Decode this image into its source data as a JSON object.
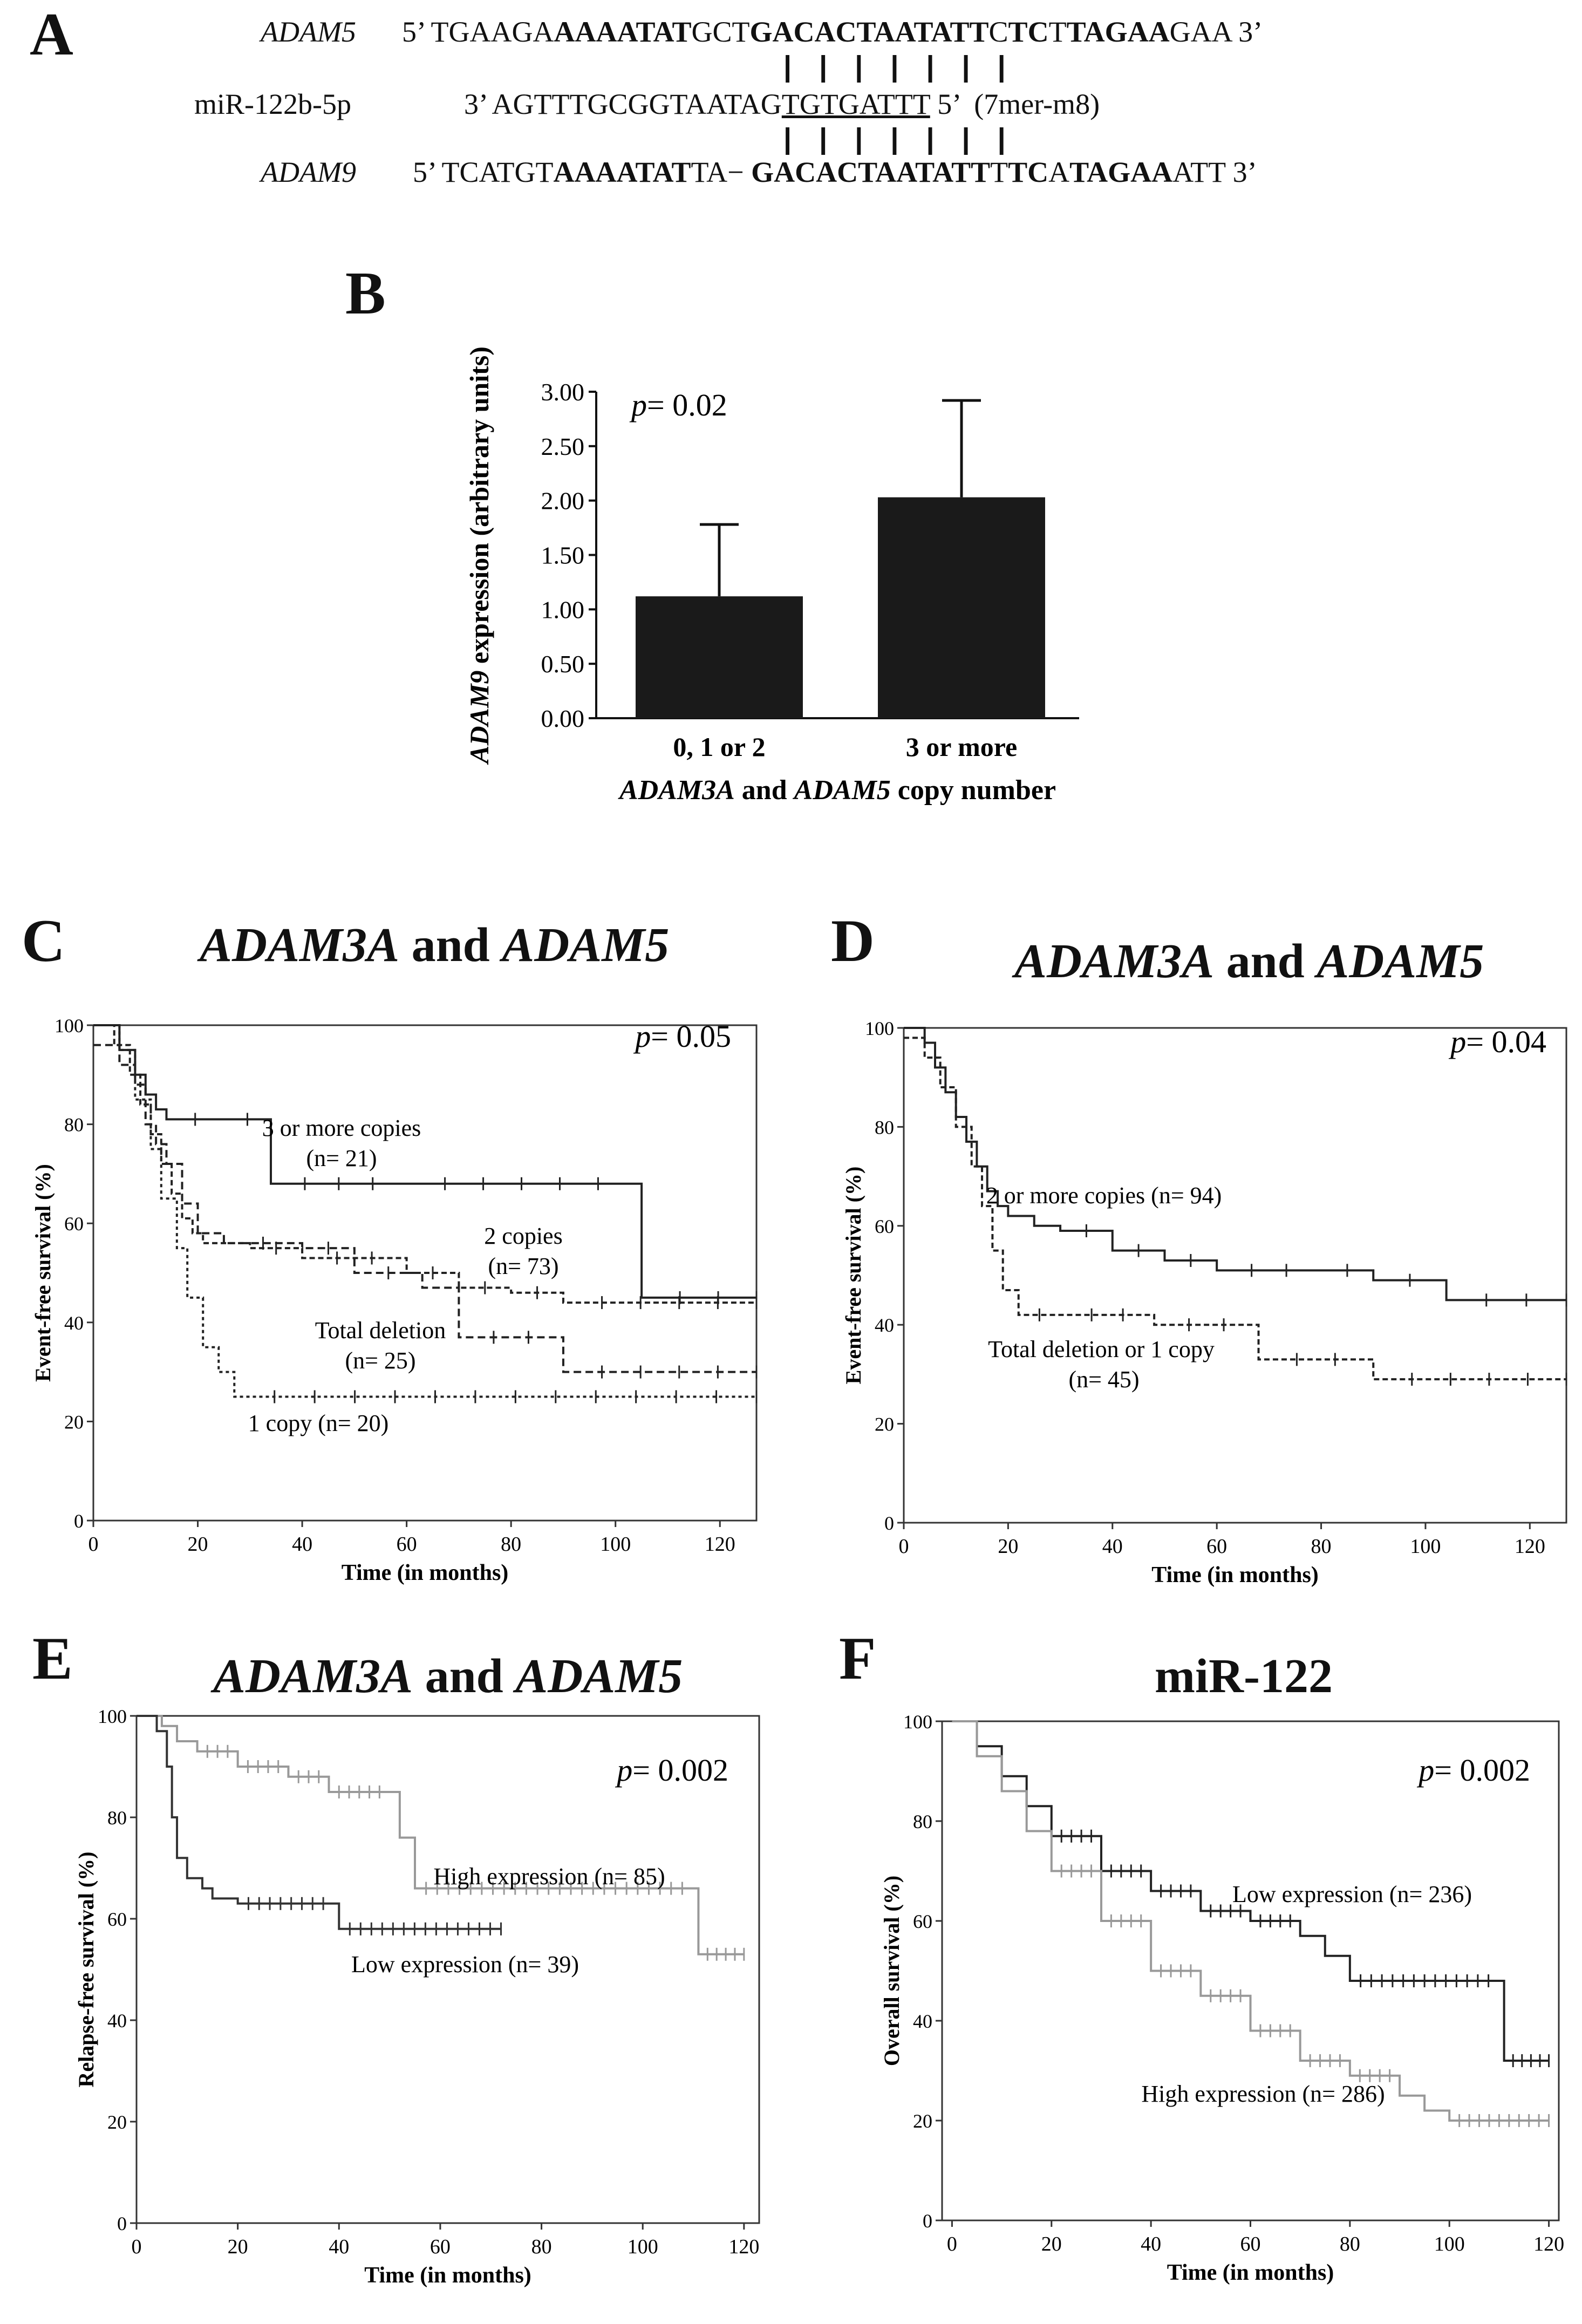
{
  "panel_a": {
    "label": "A",
    "adam5": {
      "name": "ADAM5",
      "sequence": "5’ TGAAGA AAAATAT GCT GACACTAATATT C TC TTAGAA GAA 3’"
    },
    "mirna": {
      "name": "miR-122b-5p",
      "sequence": "3’ AGTTTGCGGTAATAGTGTGATTT 5’",
      "seed": "TGTGATTT",
      "note": "(7mer-m8)"
    },
    "adam9": {
      "name": "ADAM9",
      "sequence": "5’ TCATGT AAAATAT TA− GACACTAATATT TTC A TAGAA ATT 3’"
    },
    "pairing_bars": "| | | | | | |"
  },
  "chart_data": [
    {
      "panel": "B",
      "type": "bar",
      "title": "",
      "annotation": "p= 0.02",
      "categories": [
        "0, 1 or 2",
        "3 or more"
      ],
      "values": [
        1.12,
        2.03
      ],
      "error_upper": [
        1.78,
        2.92
      ],
      "xlabel": "ADAM3A and ADAM5 copy number",
      "ylabel": "ADAM9 expression (arbitrary units)",
      "ylim": [
        0,
        3.0
      ],
      "yticks": [
        "0.00",
        "0.50",
        "1.00",
        "1.50",
        "2.00",
        "2.50",
        "3.00"
      ]
    },
    {
      "panel": "C",
      "type": "line",
      "title": "ADAM3A and ADAM5",
      "annotation": "p= 0.05",
      "xlabel": "Time (in months)",
      "ylabel": "Event-free survival (%)",
      "xlim": [
        0,
        127
      ],
      "ylim": [
        0,
        100
      ],
      "xticks": [
        0,
        20,
        40,
        60,
        80,
        100,
        120
      ],
      "yticks": [
        0,
        20,
        40,
        60,
        80,
        100
      ],
      "series": [
        {
          "name": "3 or more copies",
          "n_label": "(n= 21)",
          "x": [
            0,
            5,
            8,
            10,
            12,
            14,
            25,
            34,
            60,
            104,
            105,
            127
          ],
          "y": [
            100,
            95,
            90,
            86,
            83,
            81,
            81,
            68,
            68,
            68,
            45,
            45
          ]
        },
        {
          "name": "2 copies",
          "n_label": "(n= 73)",
          "x": [
            0,
            4,
            7,
            9,
            11,
            13,
            15,
            17,
            19,
            21,
            24,
            30,
            40,
            60,
            70,
            80,
            90,
            127
          ],
          "y": [
            100,
            96,
            90,
            84,
            78,
            72,
            66,
            61,
            58,
            56,
            56,
            55,
            53,
            50,
            47,
            46,
            44,
            44
          ]
        },
        {
          "name": "Total deletion",
          "n_label": "(n= 25)",
          "x": [
            0,
            5,
            8,
            10,
            12,
            14,
            17,
            20,
            25,
            40,
            50,
            63,
            70,
            90,
            127
          ],
          "y": [
            96,
            92,
            88,
            80,
            76,
            72,
            64,
            58,
            56,
            55,
            50,
            47,
            37,
            30,
            30
          ]
        },
        {
          "name": "1 copy",
          "n_label": "(n= 20)",
          "x": [
            0,
            5,
            8,
            11,
            13,
            16,
            18,
            21,
            24,
            27,
            127
          ],
          "y": [
            100,
            95,
            85,
            75,
            65,
            55,
            45,
            35,
            30,
            25,
            25
          ]
        }
      ]
    },
    {
      "panel": "D",
      "type": "line",
      "title": "ADAM3A and ADAM5",
      "annotation": "p= 0.04",
      "xlabel": "Time (in months)",
      "ylabel": "Event-free survival (%)",
      "xlim": [
        0,
        127
      ],
      "ylim": [
        0,
        100
      ],
      "xticks": [
        0,
        20,
        40,
        60,
        80,
        100,
        120
      ],
      "yticks": [
        0,
        20,
        40,
        60,
        80,
        100
      ],
      "series": [
        {
          "name": "2 or more copies",
          "n_label": "(n= 94)",
          "x": [
            0,
            4,
            6,
            8,
            10,
            12,
            14,
            16,
            18,
            20,
            25,
            30,
            40,
            50,
            60,
            80,
            90,
            104,
            127
          ],
          "y": [
            100,
            97,
            92,
            87,
            82,
            77,
            72,
            67,
            64,
            62,
            60,
            59,
            55,
            53,
            51,
            51,
            49,
            45,
            45
          ]
        },
        {
          "name": "Total deletion or 1 copy",
          "n_label": "(n= 45)",
          "x": [
            0,
            4,
            7,
            10,
            13,
            15,
            17,
            19,
            22,
            30,
            48,
            68,
            90,
            127
          ],
          "y": [
            98,
            94,
            88,
            80,
            72,
            64,
            55,
            47,
            42,
            42,
            40,
            33,
            29,
            29
          ]
        }
      ]
    },
    {
      "panel": "E",
      "type": "line",
      "title": "ADAM3A and ADAM5",
      "annotation": "p= 0.002",
      "xlabel": "Time (in months)",
      "ylabel": "Relapse-free survival (%)",
      "xlim": [
        0,
        123
      ],
      "ylim": [
        0,
        100
      ],
      "xticks": [
        0,
        20,
        40,
        60,
        80,
        100,
        120
      ],
      "yticks": [
        0,
        20,
        40,
        60,
        80,
        100
      ],
      "series": [
        {
          "name": "High expression",
          "n_label": "(n= 85)",
          "color": "#999999",
          "x": [
            0,
            5,
            8,
            12,
            20,
            30,
            38,
            50,
            52,
            55,
            110,
            111,
            120
          ],
          "y": [
            100,
            98,
            95,
            93,
            90,
            88,
            85,
            85,
            76,
            66,
            66,
            53,
            53
          ]
        },
        {
          "name": "Low expression",
          "n_label": "(n= 39)",
          "color": "#333333",
          "x": [
            0,
            4,
            6,
            7,
            8,
            10,
            13,
            15,
            20,
            39,
            40,
            72
          ],
          "y": [
            100,
            97,
            90,
            80,
            72,
            68,
            66,
            64,
            63,
            63,
            58,
            58
          ]
        }
      ]
    },
    {
      "panel": "F",
      "type": "line",
      "title": "miR-122",
      "annotation": "p= 0.002",
      "xlabel": "Time (in months)",
      "ylabel": "Overall survival (%)",
      "xlim": [
        -2,
        122
      ],
      "ylim": [
        0,
        100
      ],
      "xticks": [
        0,
        20,
        40,
        60,
        80,
        100,
        120
      ],
      "yticks": [
        0,
        20,
        40,
        60,
        80,
        100
      ],
      "series": [
        {
          "name": "Low expression",
          "n_label": "(n= 236)",
          "color": "#222222",
          "x": [
            0,
            5,
            10,
            15,
            20,
            30,
            40,
            50,
            60,
            70,
            75,
            80,
            110,
            111,
            120
          ],
          "y": [
            100,
            95,
            89,
            83,
            77,
            70,
            66,
            62,
            60,
            57,
            53,
            48,
            48,
            32,
            32
          ]
        },
        {
          "name": "High expression",
          "n_label": "(n= 286)",
          "color": "#999999",
          "x": [
            0,
            5,
            10,
            15,
            20,
            30,
            40,
            50,
            60,
            70,
            80,
            90,
            95,
            100,
            120
          ],
          "y": [
            100,
            93,
            86,
            78,
            70,
            60,
            50,
            45,
            38,
            32,
            29,
            25,
            22,
            20,
            20
          ]
        }
      ]
    }
  ]
}
